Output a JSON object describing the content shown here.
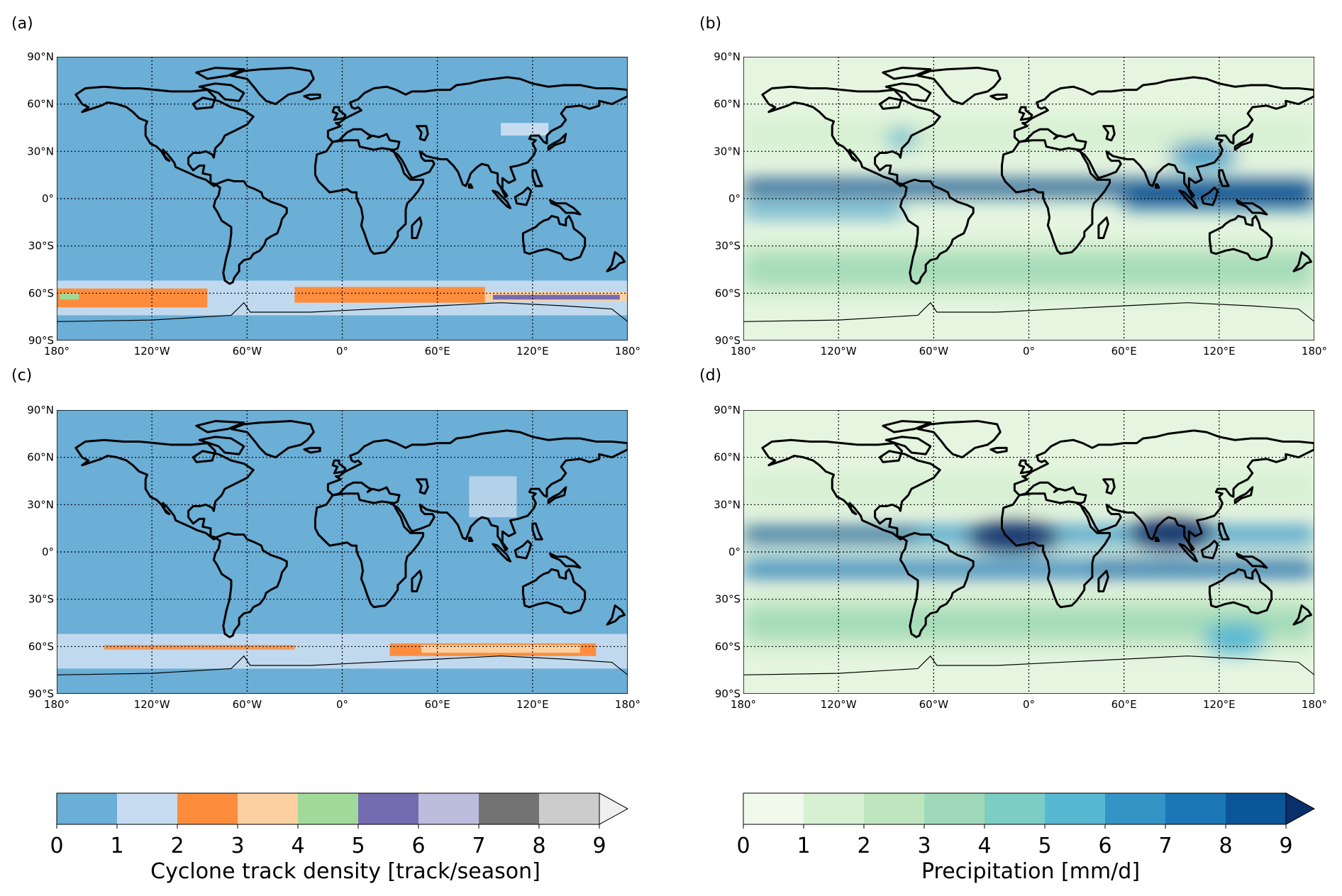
{
  "panels": [
    {
      "label": "(a)",
      "variable": "track_density",
      "ocean_color": "#6baed6",
      "variant": 1
    },
    {
      "label": "(b)",
      "variable": "precipitation",
      "ocean_color": "#e5f5e0",
      "variant": 1
    },
    {
      "label": "(c)",
      "variable": "track_density",
      "ocean_color": "#6baed6",
      "variant": 2
    },
    {
      "label": "(d)",
      "variable": "precipitation",
      "ocean_color": "#e5f5e0",
      "variant": 2
    }
  ],
  "axes": {
    "lon_ticks": [
      -180,
      -120,
      -60,
      0,
      60,
      120,
      180
    ],
    "lon_tick_labels": [
      "180°",
      "120°W",
      "60°W",
      "0°",
      "60°E",
      "120°E",
      "180°"
    ],
    "lat_ticks": [
      90,
      60,
      30,
      0,
      -30,
      -60,
      -90
    ],
    "lat_tick_labels": [
      "90°N",
      "60°N",
      "30°N",
      "0°",
      "30°S",
      "60°S",
      "90°S"
    ],
    "lon_range": [
      -180,
      180
    ],
    "lat_range": [
      -90,
      90
    ],
    "gridlines": "dotted"
  },
  "colorbars": [
    {
      "name": "track-density-colorbar",
      "label": "Cyclone track density [track/season]",
      "ticks": [
        "0",
        "1",
        "2",
        "3",
        "4",
        "5",
        "6",
        "7",
        "8",
        "9"
      ],
      "colors": [
        "#6baed6",
        "#c6dbef",
        "#fd8d3c",
        "#fdd0a2",
        "#a1d99b",
        "#756bb1",
        "#bcbddc",
        "#737373",
        "#cccccc",
        "#f0f0f0"
      ],
      "extend": "max"
    },
    {
      "name": "precipitation-colorbar",
      "label": "Precipitation [mm/d]",
      "ticks": [
        "0",
        "1",
        "2",
        "3",
        "4",
        "5",
        "6",
        "7",
        "8",
        "9"
      ],
      "colors": [
        "#f0f9ec",
        "#d7f0d2",
        "#bfe5bf",
        "#9fd9b9",
        "#7ccdc4",
        "#56b8d1",
        "#3494c6",
        "#1b76b6",
        "#0a5698",
        "#08306b"
      ],
      "extend": "max"
    }
  ]
}
